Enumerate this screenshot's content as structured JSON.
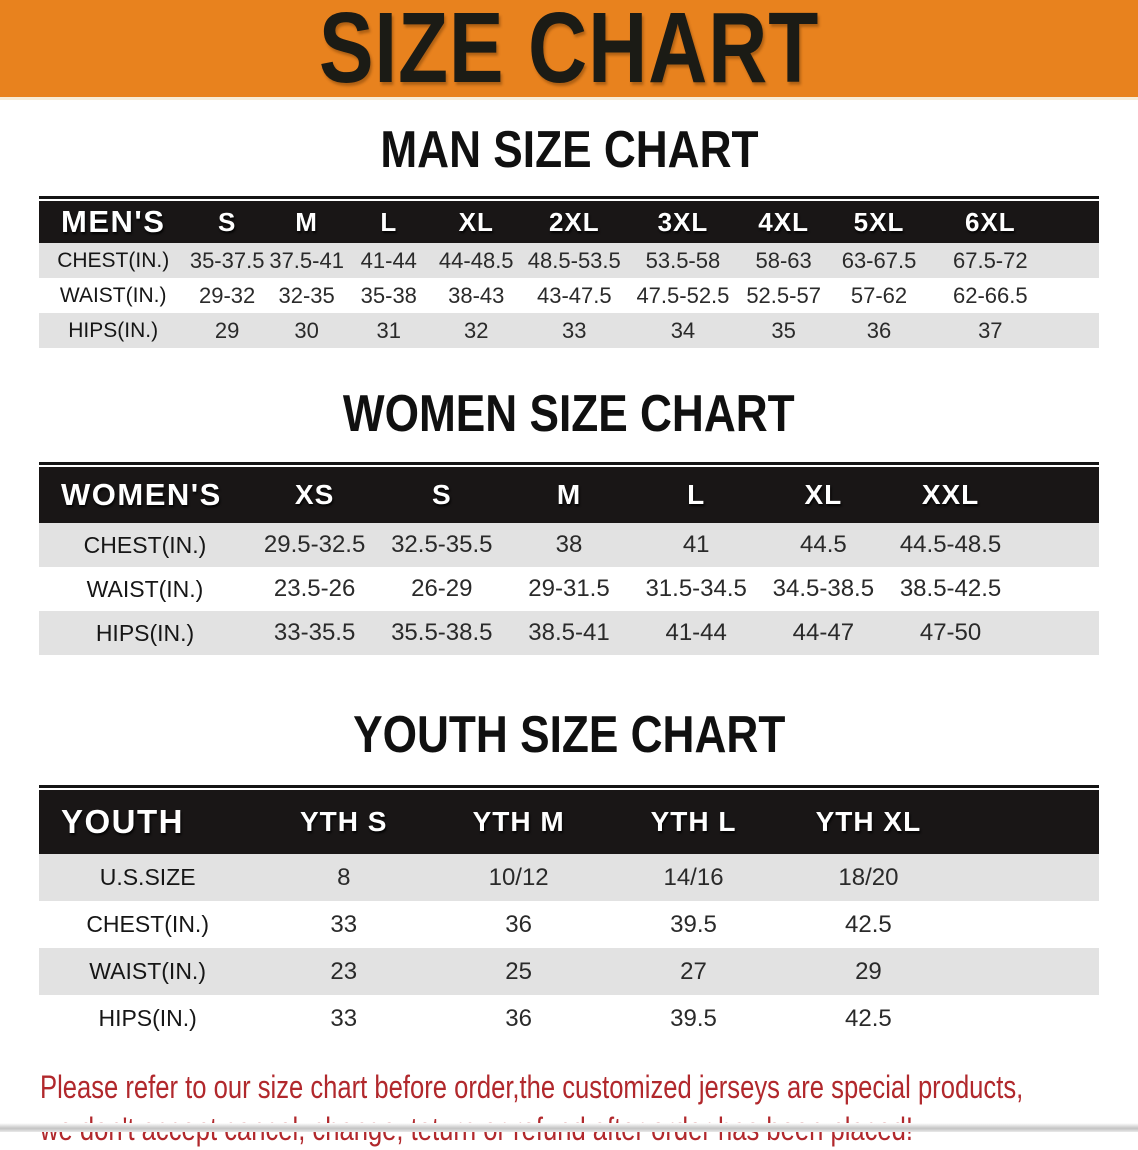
{
  "banner": {
    "title": "SIZE CHART"
  },
  "sections": [
    {
      "heading": "MAN SIZE CHART",
      "table": {
        "label_header": "MEN'S",
        "size_headers": [
          "S",
          "M",
          "L",
          "XL",
          "2XL",
          "3XL",
          "4XL",
          "5XL",
          "6XL"
        ],
        "rows": [
          {
            "label": "CHEST(IN.)",
            "values": [
              "35-37.5",
              "37.5-41",
              "41-44",
              "44-48.5",
              "48.5-53.5",
              "53.5-58",
              "58-63",
              "63-67.5",
              "67.5-72"
            ]
          },
          {
            "label": "WAIST(IN.)",
            "values": [
              "29-32",
              "32-35",
              "35-38",
              "38-43",
              "43-47.5",
              "47.5-52.5",
              "52.5-57",
              "57-62",
              "62-66.5"
            ]
          },
          {
            "label": "HIPS(IN.)",
            "values": [
              "29",
              "30",
              "31",
              "32",
              "33",
              "34",
              "35",
              "36",
              "37"
            ]
          }
        ]
      }
    },
    {
      "heading": "WOMEN SIZE CHART",
      "table": {
        "label_header": "WOMEN'S",
        "size_headers": [
          "XS",
          "S",
          "M",
          "L",
          "XL",
          "XXL"
        ],
        "rows": [
          {
            "label": "CHEST(IN.)",
            "values": [
              "29.5-32.5",
              "32.5-35.5",
              "38",
              "41",
              "44.5",
              "44.5-48.5"
            ]
          },
          {
            "label": "WAIST(IN.)",
            "values": [
              "23.5-26",
              "26-29",
              "29-31.5",
              "31.5-34.5",
              "34.5-38.5",
              "38.5-42.5"
            ]
          },
          {
            "label": "HIPS(IN.)",
            "values": [
              "33-35.5",
              "35.5-38.5",
              "38.5-41",
              "41-44",
              "44-47",
              "47-50"
            ]
          }
        ]
      }
    },
    {
      "heading": "YOUTH SIZE CHART",
      "table": {
        "label_header": "YOUTH",
        "size_headers": [
          "YTH S",
          "YTH M",
          "YTH L",
          "YTH XL"
        ],
        "rows": [
          {
            "label": "U.S.SIZE",
            "values": [
              "8",
              "10/12",
              "14/16",
              "18/20"
            ]
          },
          {
            "label": "CHEST(IN.)",
            "values": [
              "33",
              "36",
              "39.5",
              "42.5"
            ]
          },
          {
            "label": "WAIST(IN.)",
            "values": [
              "23",
              "25",
              "27",
              "29"
            ]
          },
          {
            "label": "HIPS(IN.)",
            "values": [
              "33",
              "36",
              "39.5",
              "42.5"
            ]
          }
        ]
      }
    }
  ],
  "footer": {
    "line1": "Please refer to our size chart before order,the customized jerseys are special products,",
    "line2": "we don't accept cancel, change, teturn or refund after order has been placed!"
  },
  "colors": {
    "banner_bg": "#E8821E",
    "header_bar": "#191616",
    "row_alt": "#E2E2E2",
    "note_red": "#B1282C"
  }
}
